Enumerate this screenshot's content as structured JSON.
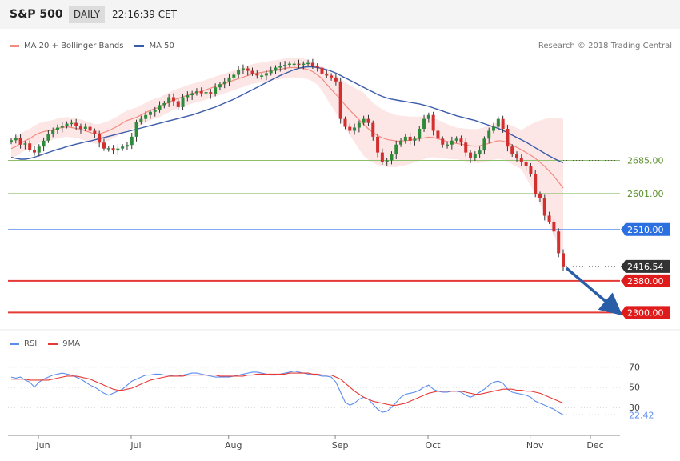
{
  "header": {
    "symbol": "S&P 500",
    "timeframe": "DAILY",
    "time": "22:16:39 CET"
  },
  "legend": {
    "ma20_label": "MA 20 + Bollinger Bands",
    "ma20_color": "#f28b82",
    "ma50_label": "MA 50",
    "ma50_color": "#3b5ba9",
    "rsi_label": "RSI",
    "rsi_color": "#5b8def",
    "ma9_label": "9MA",
    "ma9_color": "#e53935"
  },
  "credit": "Research © 2018 Trading Central",
  "chart_data": [
    {
      "type": "candlestick",
      "ylim": [
        2240,
        2990
      ],
      "x_tick_labels": [
        "Jun",
        "Jul",
        "Aug",
        "Sep",
        "Oct",
        "Nov",
        "Dec"
      ],
      "closes": [
        2736,
        2742,
        2725,
        2728,
        2712,
        2705,
        2720,
        2735,
        2752,
        2762,
        2768,
        2772,
        2778,
        2780,
        2772,
        2765,
        2770,
        2760,
        2752,
        2730,
        2715,
        2716,
        2710,
        2715,
        2720,
        2724,
        2745,
        2782,
        2790,
        2800,
        2808,
        2812,
        2825,
        2830,
        2845,
        2835,
        2820,
        2845,
        2850,
        2855,
        2860,
        2855,
        2858,
        2853,
        2870,
        2878,
        2885,
        2895,
        2902,
        2915,
        2918,
        2912,
        2905,
        2900,
        2900,
        2906,
        2912,
        2920,
        2925,
        2927,
        2930,
        2930,
        2928,
        2930,
        2932,
        2925,
        2920,
        2905,
        2900,
        2895,
        2885,
        2790,
        2770,
        2760,
        2768,
        2780,
        2790,
        2780,
        2745,
        2705,
        2680,
        2685,
        2700,
        2725,
        2735,
        2745,
        2735,
        2740,
        2765,
        2790,
        2800,
        2760,
        2740,
        2725,
        2725,
        2735,
        2740,
        2730,
        2705,
        2690,
        2700,
        2710,
        2740,
        2760,
        2770,
        2790,
        2765,
        2720,
        2700,
        2690,
        2680,
        2670,
        2650,
        2600,
        2590,
        2545,
        2530,
        2505,
        2450,
        2416.54
      ],
      "ma20": [
        2715,
        2720,
        2728,
        2735,
        2740,
        2748,
        2754,
        2758,
        2760,
        2762,
        2766,
        2768,
        2770,
        2768,
        2766,
        2764,
        2760,
        2756,
        2752,
        2752,
        2756,
        2760,
        2766,
        2772,
        2780,
        2786,
        2790,
        2794,
        2800,
        2806,
        2812,
        2816,
        2820,
        2826,
        2832,
        2838,
        2842,
        2846,
        2850,
        2854,
        2857,
        2860,
        2864,
        2868,
        2872,
        2876,
        2880,
        2884,
        2888,
        2892,
        2896,
        2900,
        2904,
        2906,
        2908,
        2910,
        2912,
        2914,
        2916,
        2918,
        2920,
        2920,
        2920,
        2918,
        2915,
        2910,
        2902,
        2892,
        2878,
        2865,
        2852,
        2840,
        2825,
        2812,
        2800,
        2788,
        2776,
        2765,
        2755,
        2748,
        2742,
        2738,
        2736,
        2734,
        2734,
        2735,
        2736,
        2738,
        2740,
        2742,
        2744,
        2743,
        2740,
        2736,
        2733,
        2730,
        2728,
        2726,
        2724,
        2722,
        2721,
        2722,
        2725,
        2728,
        2732,
        2735,
        2734,
        2730,
        2724,
        2718,
        2712,
        2705,
        2698,
        2690,
        2680,
        2670,
        2658,
        2645,
        2630,
        2615
      ],
      "ma50": [
        2693,
        2690,
        2688,
        2688,
        2690,
        2693,
        2697,
        2701,
        2705,
        2709,
        2713,
        2716,
        2720,
        2723,
        2726,
        2729,
        2732,
        2734,
        2737,
        2740,
        2743,
        2746,
        2749,
        2752,
        2755,
        2758,
        2761,
        2764,
        2767,
        2770,
        2773,
        2776,
        2779,
        2782,
        2785,
        2788,
        2791,
        2794,
        2797,
        2800,
        2804,
        2808,
        2812,
        2816,
        2820,
        2825,
        2830,
        2835,
        2840,
        2846,
        2852,
        2858,
        2864,
        2870,
        2876,
        2882,
        2888,
        2894,
        2900,
        2905,
        2910,
        2915,
        2918,
        2921,
        2922,
        2922,
        2920,
        2918,
        2915,
        2911,
        2906,
        2900,
        2894,
        2888,
        2882,
        2876,
        2870,
        2864,
        2858,
        2852,
        2847,
        2843,
        2840,
        2838,
        2836,
        2834,
        2832,
        2830,
        2828,
        2825,
        2822,
        2818,
        2814,
        2810,
        2806,
        2802,
        2798,
        2795,
        2792,
        2789,
        2786,
        2782,
        2778,
        2774,
        2770,
        2766,
        2761,
        2755,
        2749,
        2743,
        2737,
        2731,
        2724,
        2717,
        2710,
        2703,
        2696,
        2690,
        2684,
        2679
      ],
      "levels": [
        {
          "value": 2685,
          "label": "2685.00",
          "role": "resistance"
        },
        {
          "value": 2601,
          "label": "2601.00",
          "role": "resistance"
        },
        {
          "value": 2510,
          "label": "2510.00",
          "role": "pivot"
        },
        {
          "value": 2416.54,
          "label": "2416.54",
          "role": "last"
        },
        {
          "value": 2380,
          "label": "2380.00",
          "role": "support"
        },
        {
          "value": 2300,
          "label": "2300.00",
          "role": "support"
        }
      ],
      "forecast_arrow": {
        "from": 2416.54,
        "to": 2300
      }
    },
    {
      "type": "line",
      "ylim": [
        10,
        80
      ],
      "y_ticks": [
        70,
        50,
        30
      ],
      "last_value_label": "22.42",
      "series": [
        {
          "name": "RSI",
          "values": [
            60,
            59,
            60,
            57,
            55,
            50,
            55,
            58,
            60,
            62,
            63,
            64,
            63,
            62,
            60,
            58,
            55,
            52,
            50,
            47,
            44,
            42,
            44,
            46,
            48,
            52,
            56,
            58,
            60,
            62,
            62,
            63,
            63,
            62,
            62,
            61,
            61,
            62,
            63,
            64,
            64,
            63,
            62,
            61,
            60,
            60,
            60,
            60,
            61,
            62,
            63,
            64,
            65,
            65,
            64,
            63,
            62,
            62,
            63,
            64,
            65,
            66,
            65,
            64,
            63,
            62,
            62,
            61,
            61,
            60,
            55,
            45,
            35,
            32,
            34,
            38,
            40,
            38,
            33,
            28,
            25,
            26,
            30,
            35,
            40,
            43,
            44,
            45,
            47,
            50,
            52,
            48,
            46,
            45,
            45,
            46,
            46,
            45,
            42,
            40,
            42,
            45,
            48,
            52,
            55,
            56,
            54,
            48,
            45,
            44,
            43,
            42,
            40,
            36,
            34,
            32,
            30,
            28,
            25,
            22.42
          ]
        },
        {
          "name": "9MA",
          "values": [
            58,
            58,
            58,
            58,
            57,
            57,
            57,
            57,
            57,
            58,
            59,
            60,
            61,
            61,
            61,
            60,
            59,
            58,
            56,
            54,
            52,
            50,
            48,
            47,
            47,
            48,
            49,
            51,
            53,
            55,
            57,
            58,
            59,
            60,
            61,
            61,
            61,
            61,
            62,
            62,
            62,
            62,
            62,
            62,
            62,
            61,
            61,
            61,
            61,
            61,
            61,
            62,
            62,
            63,
            63,
            63,
            63,
            63,
            63,
            63,
            64,
            64,
            64,
            64,
            64,
            63,
            63,
            62,
            62,
            62,
            60,
            58,
            54,
            50,
            46,
            43,
            40,
            38,
            36,
            35,
            34,
            33,
            32,
            32,
            33,
            34,
            36,
            38,
            40,
            42,
            44,
            45,
            46,
            46,
            46,
            46,
            46,
            46,
            45,
            44,
            43,
            43,
            44,
            45,
            46,
            47,
            48,
            48,
            48,
            47,
            47,
            46,
            46,
            45,
            44,
            42,
            40,
            38,
            36,
            34
          ]
        }
      ]
    }
  ]
}
